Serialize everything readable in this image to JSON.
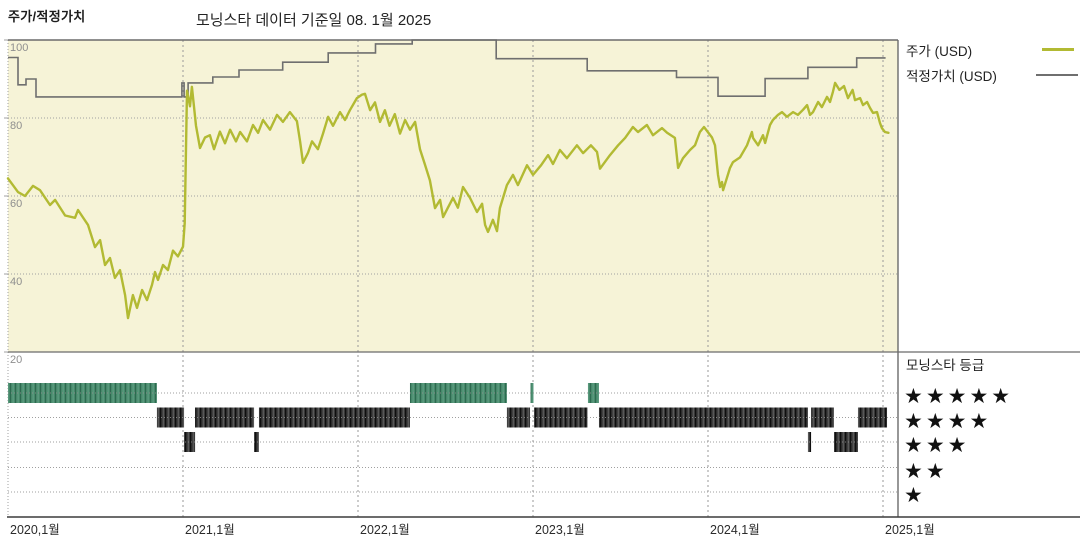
{
  "header": {
    "title": "주가/적정가치",
    "subtitle": "모닝스타 데이터 기준일 08. 1월 2025"
  },
  "legend": {
    "price_label": "주가 (USD)",
    "fair_value_label": "적정가치 (USD)",
    "rating_title": "모닝스타 등급",
    "rating_rows": [
      5,
      4,
      3,
      2,
      1
    ],
    "star_char": "★"
  },
  "colors": {
    "price": "#b2ba33",
    "fair_value": "#6f6f6f",
    "chart_bg": "#f6f3d7",
    "five_star_band": "#47886a",
    "five_star_band_dark": "#2d6a50",
    "five_star_band_light": "#63a387",
    "other_band": "#383838",
    "other_band_dark": "#0f0f0f",
    "other_band_light": "#606060",
    "grid": "#a0a0a0",
    "year_grid": "#9a9a9a",
    "row_grid": "#8f8f8f",
    "border": "#6b6b6b",
    "axis_line": "#3c3c3c",
    "axis_text": "#8f8f8f",
    "text": "#1c1c1c"
  },
  "chart_data": {
    "type": "line",
    "title": "모닝스타 데이터 기준일 08. 1월 2025",
    "x_axis": {
      "ticks": [
        2020,
        2021,
        2022,
        2023,
        2024,
        2025
      ],
      "tick_labels": [
        "2020,1월",
        "2021,1월",
        "2022,1월",
        "2023,1월",
        "2024,1월",
        "2025,1월"
      ],
      "range": [
        2020,
        2025.09
      ]
    },
    "y_axis": {
      "ticks": [
        100,
        80,
        60,
        40,
        20
      ],
      "range": [
        20,
        100
      ],
      "grid": true
    },
    "legend_position": "right",
    "series": [
      {
        "name": "주가 (USD)",
        "style": "line",
        "points": [
          [
            2020.0,
            64.5
          ],
          [
            2020.057,
            61
          ],
          [
            2020.097,
            60
          ],
          [
            2020.143,
            62.6
          ],
          [
            2020.183,
            61.5
          ],
          [
            2020.24,
            57.7
          ],
          [
            2020.269,
            59
          ],
          [
            2020.326,
            55
          ],
          [
            2020.383,
            54.4
          ],
          [
            2020.4,
            56.4
          ],
          [
            2020.457,
            52.6
          ],
          [
            2020.497,
            46.9
          ],
          [
            2020.526,
            48.7
          ],
          [
            2020.554,
            42.3
          ],
          [
            2020.583,
            44.1
          ],
          [
            2020.611,
            39
          ],
          [
            2020.64,
            41
          ],
          [
            2020.669,
            34.6
          ],
          [
            2020.686,
            28.7
          ],
          [
            2020.714,
            34.6
          ],
          [
            2020.737,
            31.3
          ],
          [
            2020.766,
            35.9
          ],
          [
            2020.794,
            33.3
          ],
          [
            2020.823,
            37.2
          ],
          [
            2020.84,
            40.5
          ],
          [
            2020.857,
            38.5
          ],
          [
            2020.886,
            42.3
          ],
          [
            2020.914,
            41
          ],
          [
            2020.943,
            46
          ],
          [
            2020.971,
            44.5
          ],
          [
            2021.0,
            47
          ],
          [
            2021.01,
            53
          ],
          [
            2021.023,
            87
          ],
          [
            2021.04,
            83
          ],
          [
            2021.051,
            88
          ],
          [
            2021.074,
            78
          ],
          [
            2021.097,
            72.3
          ],
          [
            2021.126,
            75
          ],
          [
            2021.154,
            75.6
          ],
          [
            2021.177,
            72
          ],
          [
            2021.211,
            76.5
          ],
          [
            2021.24,
            73.5
          ],
          [
            2021.269,
            77
          ],
          [
            2021.303,
            74
          ],
          [
            2021.326,
            76.4
          ],
          [
            2021.366,
            74
          ],
          [
            2021.4,
            78.2
          ],
          [
            2021.429,
            76.2
          ],
          [
            2021.457,
            79.5
          ],
          [
            2021.497,
            77
          ],
          [
            2021.537,
            80.8
          ],
          [
            2021.571,
            79
          ],
          [
            2021.611,
            81.5
          ],
          [
            2021.651,
            79.2
          ],
          [
            2021.669,
            74
          ],
          [
            2021.686,
            68.5
          ],
          [
            2021.714,
            71
          ],
          [
            2021.737,
            74
          ],
          [
            2021.771,
            72
          ],
          [
            2021.8,
            76
          ],
          [
            2021.829,
            80.3
          ],
          [
            2021.857,
            78
          ],
          [
            2021.897,
            81.5
          ],
          [
            2021.926,
            79.5
          ],
          [
            2021.954,
            82
          ],
          [
            2021.994,
            85.1
          ],
          [
            2022.023,
            86
          ],
          [
            2022.04,
            86.2
          ],
          [
            2022.069,
            82
          ],
          [
            2022.097,
            84
          ],
          [
            2022.126,
            79
          ],
          [
            2022.154,
            82
          ],
          [
            2022.18,
            78
          ],
          [
            2022.21,
            81
          ],
          [
            2022.24,
            76
          ],
          [
            2022.269,
            79.5
          ],
          [
            2022.297,
            77
          ],
          [
            2022.326,
            79
          ],
          [
            2022.354,
            72
          ],
          [
            2022.383,
            68
          ],
          [
            2022.411,
            64
          ],
          [
            2022.44,
            56.9
          ],
          [
            2022.469,
            59
          ],
          [
            2022.486,
            54.6
          ],
          [
            2022.514,
            57
          ],
          [
            2022.543,
            59.5
          ],
          [
            2022.571,
            57
          ],
          [
            2022.6,
            62.3
          ],
          [
            2022.64,
            59.5
          ],
          [
            2022.68,
            55.9
          ],
          [
            2022.709,
            58
          ],
          [
            2022.726,
            52.6
          ],
          [
            2022.743,
            50.8
          ],
          [
            2022.771,
            53.9
          ],
          [
            2022.794,
            51
          ],
          [
            2022.811,
            56.9
          ],
          [
            2022.851,
            62.8
          ],
          [
            2022.886,
            65.4
          ],
          [
            2022.914,
            62.8
          ],
          [
            2022.966,
            67.9
          ],
          [
            2023.0,
            65.4
          ],
          [
            2023.046,
            67.9
          ],
          [
            2023.086,
            70.5
          ],
          [
            2023.114,
            68.2
          ],
          [
            2023.154,
            71.8
          ],
          [
            2023.194,
            69.7
          ],
          [
            2023.251,
            73
          ],
          [
            2023.286,
            71
          ],
          [
            2023.331,
            73
          ],
          [
            2023.366,
            71.3
          ],
          [
            2023.383,
            67
          ],
          [
            2023.44,
            70.5
          ],
          [
            2023.486,
            73
          ],
          [
            2023.526,
            74.9
          ],
          [
            2023.571,
            77.7
          ],
          [
            2023.6,
            76.4
          ],
          [
            2023.651,
            78.2
          ],
          [
            2023.686,
            75.6
          ],
          [
            2023.737,
            77.4
          ],
          [
            2023.766,
            76.2
          ],
          [
            2023.811,
            74.9
          ],
          [
            2023.829,
            67.2
          ],
          [
            2023.857,
            69.7
          ],
          [
            2023.897,
            71.8
          ],
          [
            2023.926,
            73
          ],
          [
            2023.954,
            76.4
          ],
          [
            2023.977,
            77.7
          ],
          [
            2024.023,
            75
          ],
          [
            2024.04,
            73
          ],
          [
            2024.057,
            65.4
          ],
          [
            2024.069,
            62.3
          ],
          [
            2024.08,
            63.6
          ],
          [
            2024.086,
            61.5
          ],
          [
            2024.126,
            67.2
          ],
          [
            2024.143,
            68.7
          ],
          [
            2024.183,
            69.9
          ],
          [
            2024.223,
            73
          ],
          [
            2024.251,
            76.4
          ],
          [
            2024.257,
            74.9
          ],
          [
            2024.286,
            73
          ],
          [
            2024.314,
            75.6
          ],
          [
            2024.326,
            73.6
          ],
          [
            2024.354,
            78.2
          ],
          [
            2024.371,
            79.5
          ],
          [
            2024.4,
            80.8
          ],
          [
            2024.423,
            81.5
          ],
          [
            2024.451,
            80.3
          ],
          [
            2024.486,
            81.5
          ],
          [
            2024.514,
            80.8
          ],
          [
            2024.543,
            82.1
          ],
          [
            2024.566,
            83.3
          ],
          [
            2024.583,
            80.8
          ],
          [
            2024.6,
            81.5
          ],
          [
            2024.629,
            84.1
          ],
          [
            2024.651,
            82.8
          ],
          [
            2024.68,
            85.4
          ],
          [
            2024.697,
            84.1
          ],
          [
            2024.714,
            86.7
          ],
          [
            2024.726,
            89
          ],
          [
            2024.751,
            87.2
          ],
          [
            2024.777,
            88.2
          ],
          [
            2024.8,
            85.1
          ],
          [
            2024.826,
            87.2
          ],
          [
            2024.84,
            84.6
          ],
          [
            2024.869,
            85.1
          ],
          [
            2024.886,
            83.3
          ],
          [
            2024.909,
            84.1
          ],
          [
            2024.926,
            82.6
          ],
          [
            2024.943,
            81.3
          ],
          [
            2024.966,
            81.5
          ],
          [
            2024.983,
            78.7
          ],
          [
            2024.994,
            77.4
          ],
          [
            2025.011,
            76.4
          ],
          [
            2025.031,
            76.2
          ]
        ]
      },
      {
        "name": "적정가치 (USD)",
        "style": "step",
        "points": [
          [
            2020.0,
            95.5
          ],
          [
            2020.057,
            88.5
          ],
          [
            2020.103,
            90
          ],
          [
            2020.16,
            85.4
          ],
          [
            2020.994,
            89
          ],
          [
            2021.006,
            85.4
          ],
          [
            2021.029,
            89
          ],
          [
            2021.17,
            90.5
          ],
          [
            2021.32,
            92.3
          ],
          [
            2021.57,
            94.3
          ],
          [
            2021.83,
            96.7
          ],
          [
            2022.1,
            99
          ],
          [
            2022.31,
            100
          ],
          [
            2022.79,
            95.2
          ],
          [
            2023.31,
            92.1
          ],
          [
            2023.82,
            90.4
          ],
          [
            2024.057,
            85.6
          ],
          [
            2024.326,
            90.1
          ],
          [
            2024.571,
            93
          ],
          [
            2024.85,
            95.4
          ],
          [
            2025.015,
            95.4
          ]
        ]
      }
    ],
    "rating_timeline": {
      "title": "모닝스타 등급",
      "rows": [
        {
          "stars": 5,
          "segments": [
            [
              2020.0,
              2020.851
            ],
            [
              2022.297,
              2022.851
            ],
            [
              2022.986,
              2023.003
            ],
            [
              2023.314,
              2023.377
            ]
          ]
        },
        {
          "stars": 4,
          "segments": [
            [
              2020.851,
              2021.006
            ],
            [
              2021.069,
              2021.406
            ],
            [
              2021.434,
              2022.297
            ],
            [
              2022.851,
              2022.983
            ],
            [
              2023.006,
              2023.311
            ],
            [
              2023.377,
              2024.571
            ],
            [
              2024.589,
              2024.72
            ],
            [
              2024.857,
              2025.023
            ]
          ]
        },
        {
          "stars": 3,
          "segments": [
            [
              2021.006,
              2021.069
            ],
            [
              2021.406,
              2021.434
            ],
            [
              2024.571,
              2024.589
            ],
            [
              2024.72,
              2024.857
            ]
          ]
        },
        {
          "stars": 2,
          "segments": []
        },
        {
          "stars": 1,
          "segments": []
        }
      ]
    }
  }
}
